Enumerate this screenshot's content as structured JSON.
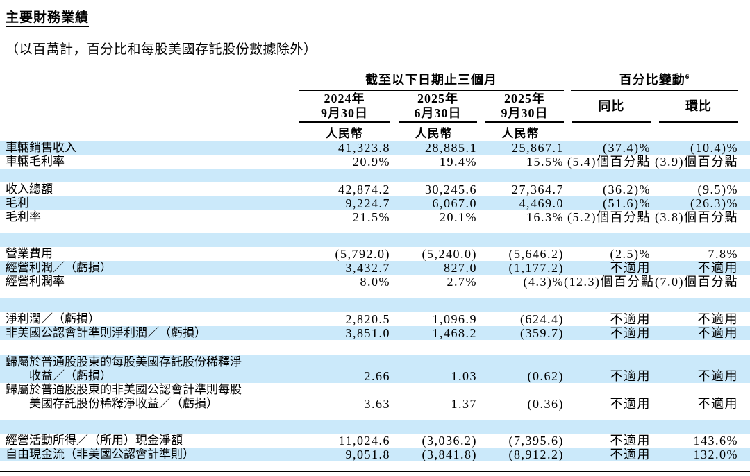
{
  "colors": {
    "stripe": "#cbe9fa",
    "rule": "#000000"
  },
  "page": {
    "title": "主要財務業績",
    "subtitle": "（以百萬計，百分比和每股美國存託股份數據除外）"
  },
  "table": {
    "group_headers": [
      {
        "label": "截至以下日期止三個月",
        "sup": ""
      },
      {
        "label": "百分比變動",
        "sup": "6"
      }
    ],
    "columns": [
      {
        "line1": "2024年",
        "line2": "9月30日",
        "currency": "人民幣"
      },
      {
        "line1": "2025年",
        "line2": "6月30日",
        "currency": "人民幣"
      },
      {
        "line1": "2025年",
        "line2": "9月30日",
        "currency": "人民幣"
      },
      {
        "label": "同比"
      },
      {
        "label": "環比"
      }
    ],
    "rows": [
      {
        "type": "data",
        "shade": true,
        "label": "車輛銷售收入",
        "values": [
          "41,323.8",
          "28,885.1",
          "25,867.1",
          "(37.4)%",
          "(10.4)%"
        ]
      },
      {
        "type": "data",
        "shade": false,
        "label": "車輛毛利率",
        "values": [
          "20.9%",
          "19.4%",
          "15.5%",
          "(5.4)個百分點",
          "(3.9)個百分點"
        ]
      },
      {
        "type": "blank",
        "shade": true,
        "mt": 0
      },
      {
        "type": "data",
        "shade": false,
        "label": "收入總額",
        "values": [
          "42,874.2",
          "30,245.6",
          "27,364.7",
          "(36.2)%",
          "(9.5)%"
        ]
      },
      {
        "type": "data",
        "shade": true,
        "label": "毛利",
        "values": [
          "9,224.7",
          "6,067.0",
          "4,469.0",
          "(51.6)%",
          "(26.3)%"
        ]
      },
      {
        "type": "data",
        "shade": false,
        "label": "毛利率",
        "values": [
          "21.5%",
          "20.1%",
          "16.3%",
          "(5.2)個百分點",
          "(3.8)個百分點"
        ]
      },
      {
        "type": "blank",
        "shade": true,
        "mt": 13
      },
      {
        "type": "data",
        "shade": false,
        "label": "營業費用",
        "values": [
          "(5,792.0)",
          "(5,240.0)",
          "(5,646.2)",
          "(2.5)%",
          "7.8%"
        ]
      },
      {
        "type": "data",
        "shade": true,
        "label": "經營利潤／（虧損）",
        "values": [
          "3,432.7",
          "827.0",
          "(1,177.2)",
          "不適用",
          "不適用"
        ]
      },
      {
        "type": "data",
        "shade": false,
        "label": "經營利潤率",
        "values": [
          "8.0%",
          "2.7%",
          "(4.3)%",
          "(12.3)個百分點",
          "(7.0)個百分點"
        ]
      },
      {
        "type": "blank",
        "shade": true,
        "mt": 14
      },
      {
        "type": "data",
        "shade": false,
        "label": "淨利潤／（虧損）",
        "values": [
          "2,820.5",
          "1,096.9",
          "(624.4)",
          "不適用",
          "不適用"
        ]
      },
      {
        "type": "data",
        "shade": true,
        "label": "非美國公認會計準則淨利潤／（虧損）",
        "values": [
          "3,851.0",
          "1,468.2",
          "(359.7)",
          "不適用",
          "不適用"
        ]
      },
      {
        "type": "blank",
        "shade": false,
        "mt": 2
      },
      {
        "type": "data2",
        "shade": true,
        "label": "歸屬於普通股股東的每股美國存託股份稀釋淨",
        "label2": "收益／（虧損）",
        "values": [
          "2.66",
          "1.03",
          "(0.62)",
          "不適用",
          "不適用"
        ]
      },
      {
        "type": "data2",
        "shade": false,
        "label": "歸屬於普通股股東的非美國公認會計準則每股",
        "label2": "美國存託股份稀釋淨收益／（虧損）",
        "values": [
          "3.63",
          "1.37",
          "(0.36)",
          "不適用",
          "不適用"
        ]
      },
      {
        "type": "blank",
        "shade": true,
        "mt": 13
      },
      {
        "type": "data",
        "shade": false,
        "label": "經營活動所得／（所用）現金淨額",
        "values": [
          "11,024.6",
          "(3,036.2)",
          "(7,395.6)",
          "不適用",
          "143.6%"
        ]
      },
      {
        "type": "data",
        "shade": true,
        "label": "自由現金流（非美國公認會計準則）",
        "values": [
          "9,051.8",
          "(3,841.8)",
          "(8,912.2)",
          "不適用",
          "132.0%"
        ]
      }
    ]
  }
}
